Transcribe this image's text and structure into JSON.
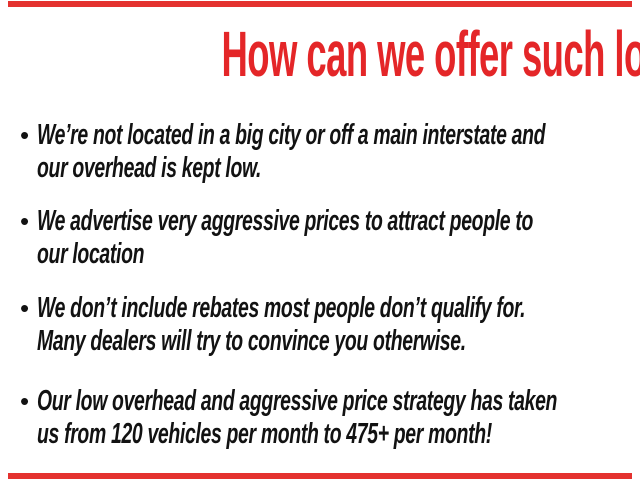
{
  "page": {
    "title": "How can we offer such low prices?",
    "accent_color": "#e42628",
    "text_color": "#121212",
    "background_color": "#ffffff"
  },
  "bullets": [
    {
      "marker": "•",
      "line1": "We’re not located in a big city or off a main interstate and",
      "line2": "our overhead is kept low."
    },
    {
      "marker": "•",
      "line1": "We advertise very aggressive prices to attract people to",
      "line2": "our location"
    },
    {
      "marker": "•",
      "line1": "We don’t include rebates most people don’t qualify for.",
      "line2": "Many dealers will try to convince you otherwise."
    },
    {
      "marker": "•",
      "line1": "Our low overhead and aggressive price strategy has taken",
      "line2": "us from 120 vehicles per month to 475+ per month!"
    }
  ]
}
